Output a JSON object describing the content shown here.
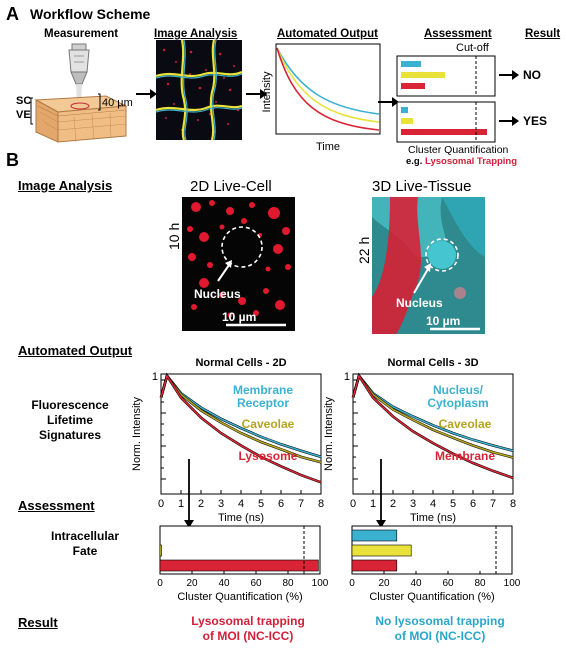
{
  "panel_a": {
    "letter": "A",
    "title": "Workflow Scheme",
    "columns": [
      "Measurement",
      "Image Analysis",
      "Automated Output",
      "Assessment",
      "Result"
    ],
    "skin_labels": {
      "sc": "SC",
      "ve": "VE",
      "depth": "40 µm"
    },
    "output_ylabel": "Intensity",
    "output_xlabel": "Time",
    "cutoff_label": "Cut-off",
    "result_no": "NO",
    "result_yes": "YES",
    "quant_label": "Cluster Quantification",
    "quant_eg": "e.g.",
    "quant_eg_red": "Lysosomal Trapping"
  },
  "panel_b": {
    "letter": "B",
    "image_analysis_header": "Image Analysis",
    "img2d_title": "2D Live-Cell",
    "img2d_time": "10 h",
    "img3d_title": "3D Live-Tissue",
    "img3d_time": "22 h",
    "nucleus_label": "Nucleus",
    "scale_label": "10 µm",
    "automated_output_header": "Automated Output",
    "fls_label": [
      "Fluorescence",
      "Lifetime",
      "Signatures"
    ],
    "assessment_header": "Assessment",
    "fate_label": [
      "Intracellular",
      "Fate"
    ],
    "result_header": "Result",
    "result_2d": [
      "Lysosomal trapping",
      "of MOI (NC-ICC)"
    ],
    "result_3d": [
      "No lysosomal trapping",
      "of MOI (NC-ICC)"
    ]
  },
  "colors": {
    "cyan": "#3bb1d0",
    "yellow": "#e8e23a",
    "red": "#d92435",
    "redtext": "#d1203a",
    "cyantext": "#29a6c9"
  },
  "chart_data": [
    {
      "type": "line",
      "title": "Normal Cells - 2D",
      "xlabel": "Time (ns)",
      "ylabel": "Norm. Intensity",
      "xlim": [
        0,
        8
      ],
      "xticks": [
        0,
        1,
        2,
        3,
        4,
        5,
        6,
        7,
        8
      ],
      "yscale": "log",
      "ytick_label": "1",
      "series": [
        {
          "name": "Membrane Receptor",
          "color": "#3bb1d0",
          "x": [
            0,
            0.3,
            1,
            2,
            3,
            4,
            5,
            6,
            7,
            8
          ],
          "y": [
            0.55,
            1,
            0.62,
            0.42,
            0.31,
            0.24,
            0.19,
            0.155,
            0.13,
            0.11
          ]
        },
        {
          "name": "Caveolae",
          "color": "#b5a41f",
          "x": [
            0,
            0.3,
            1,
            2,
            3,
            4,
            5,
            6,
            7,
            8
          ],
          "y": [
            0.55,
            1,
            0.6,
            0.39,
            0.28,
            0.21,
            0.165,
            0.135,
            0.11,
            0.095
          ]
        },
        {
          "name": "Lysosome",
          "color": "#d92435",
          "x": [
            0,
            0.3,
            1,
            2,
            3,
            4,
            5,
            6,
            7,
            8
          ],
          "y": [
            0.55,
            1,
            0.55,
            0.32,
            0.21,
            0.15,
            0.11,
            0.085,
            0.067,
            0.055
          ]
        }
      ]
    },
    {
      "type": "line",
      "title": "Normal Cells - 3D",
      "xlabel": "Time (ns)",
      "ylabel": "Norm. Intensity",
      "xlim": [
        0,
        8
      ],
      "xticks": [
        0,
        1,
        2,
        3,
        4,
        5,
        6,
        7,
        8
      ],
      "yscale": "log",
      "ytick_label": "1",
      "series": [
        {
          "name": "Nucleus/ Cytoplasm",
          "color": "#3bb1d0",
          "x": [
            0,
            0.3,
            1,
            2,
            3,
            4,
            5,
            6,
            7,
            8
          ],
          "y": [
            0.55,
            1,
            0.62,
            0.43,
            0.33,
            0.26,
            0.21,
            0.175,
            0.15,
            0.13
          ]
        },
        {
          "name": "Caveolae",
          "color": "#b5a41f",
          "x": [
            0,
            0.3,
            1,
            2,
            3,
            4,
            5,
            6,
            7,
            8
          ],
          "y": [
            0.55,
            1,
            0.6,
            0.4,
            0.3,
            0.23,
            0.185,
            0.15,
            0.125,
            0.108
          ]
        },
        {
          "name": "Membrane",
          "color": "#d92435",
          "x": [
            0,
            0.3,
            1,
            2,
            3,
            4,
            5,
            6,
            7,
            8
          ],
          "y": [
            0.55,
            1,
            0.55,
            0.33,
            0.22,
            0.16,
            0.12,
            0.093,
            0.075,
            0.062
          ]
        }
      ]
    },
    {
      "type": "bar",
      "orientation": "horizontal",
      "xlabel": "Cluster Quantification (%)",
      "xlim": [
        0,
        100
      ],
      "xticks": [
        0,
        20,
        40,
        60,
        80,
        100
      ],
      "cutoff": 90,
      "series": [
        {
          "color": "#3bb1d0",
          "value": 0
        },
        {
          "color": "#e8e23a",
          "value": 1
        },
        {
          "color": "#d92435",
          "value": 99
        }
      ]
    },
    {
      "type": "bar",
      "orientation": "horizontal",
      "xlabel": "Cluster Quantification (%)",
      "xlim": [
        0,
        100
      ],
      "xticks": [
        0,
        20,
        40,
        60,
        80,
        100
      ],
      "cutoff": 90,
      "series": [
        {
          "color": "#3bb1d0",
          "value": 28
        },
        {
          "color": "#e8e23a",
          "value": 37
        },
        {
          "color": "#d92435",
          "value": 28
        }
      ]
    }
  ]
}
